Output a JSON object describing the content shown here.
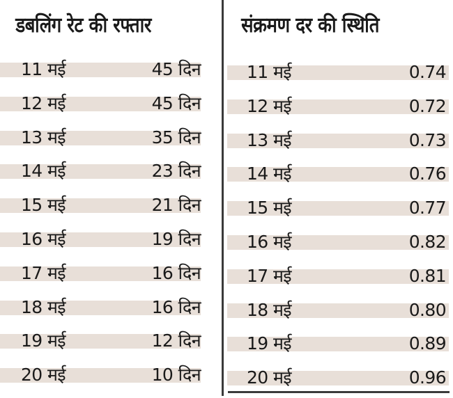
{
  "doubling_table": {
    "title": "डबलिंग रेट की रफ्तार",
    "rows": [
      {
        "date": "11 मई",
        "value": "45 दिन"
      },
      {
        "date": "12 मई",
        "value": "45 दिन"
      },
      {
        "date": "13 मई",
        "value": "35 दिन"
      },
      {
        "date": "14 मई",
        "value": "23 दिन"
      },
      {
        "date": "15 मई",
        "value": "21 दिन"
      },
      {
        "date": "16 मई",
        "value": "19 दिन"
      },
      {
        "date": "17 मई",
        "value": "16 दिन"
      },
      {
        "date": "18 मई",
        "value": "16 दिन"
      },
      {
        "date": "19 मई",
        "value": "12 दिन"
      },
      {
        "date": "20 मई",
        "value": "10 दिन"
      }
    ]
  },
  "infection_table": {
    "title": "संक्रमण दर की स्थिति",
    "rows": [
      {
        "date": "11 मई",
        "value": "0.74"
      },
      {
        "date": "12 मई",
        "value": "0.72"
      },
      {
        "date": "13 मई",
        "value": "0.73"
      },
      {
        "date": "14 मई",
        "value": "0.76"
      },
      {
        "date": "15 मई",
        "value": "0.77"
      },
      {
        "date": "16 मई",
        "value": "0.82"
      },
      {
        "date": "17 मई",
        "value": "0.81"
      },
      {
        "date": "18 मई",
        "value": "0.80"
      },
      {
        "date": "19 मई",
        "value": "0.89"
      },
      {
        "date": "20 मई",
        "value": "0.96"
      }
    ]
  },
  "colors": {
    "row_band": "#e8dfd8",
    "rule": "#3a3a3a",
    "text": "#1a1a1a"
  }
}
